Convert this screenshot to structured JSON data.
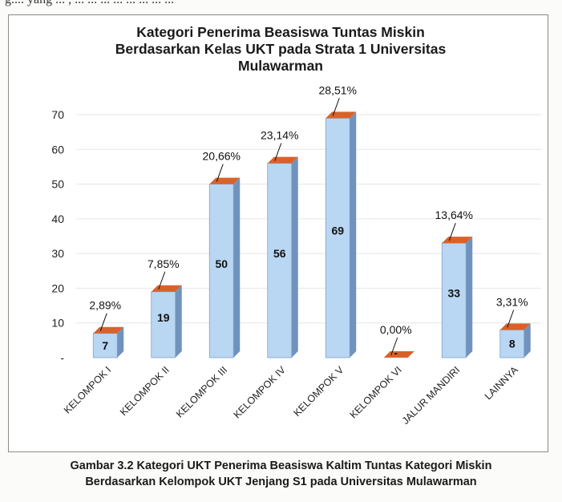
{
  "top_text": "g.... yang ... , ... ... ... ... ... ... ... ...",
  "chart_data": {
    "type": "bar",
    "title_lines": [
      "Kategori Penerima Beasiswa Tuntas Miskin",
      "Berdasarkan Kelas UKT pada Strata 1 Universitas",
      "Mulawarman"
    ],
    "categories": [
      "KELOMPOK I",
      "KELOMPOK II",
      "KELOMPOK III",
      "KELOMPOK IV",
      "KELOMPOK V",
      "KELOMPOK VI",
      "JALUR MANDIRI",
      "LAINNYA"
    ],
    "values": [
      7,
      19,
      50,
      56,
      69,
      0,
      33,
      8
    ],
    "value_labels": [
      "7",
      "19",
      "50",
      "56",
      "69",
      "-",
      "33",
      "8"
    ],
    "percent_labels": [
      "2,89%",
      "7,85%",
      "20,66%",
      "23,14%",
      "28,51%",
      "0,00%",
      "13,64%",
      "3,31%"
    ],
    "y_ticks": [
      "-",
      "10",
      "20",
      "30",
      "40",
      "50",
      "60",
      "70"
    ],
    "ylim": [
      0,
      70
    ],
    "grid": true,
    "legend": "none",
    "colors": {
      "bar_front": "#b9d6f2",
      "bar_side": "#6f93bd",
      "bar_top": "#d9622b",
      "bar_edge": "#7da2cc"
    }
  },
  "caption_lines": [
    "Gambar 3.2 Kategori UKT Penerima Beasiswa Kaltim Tuntas Kategori Miskin",
    "Berdasarkan Kelompok UKT Jenjang S1 pada Universitas Mulawarman"
  ]
}
